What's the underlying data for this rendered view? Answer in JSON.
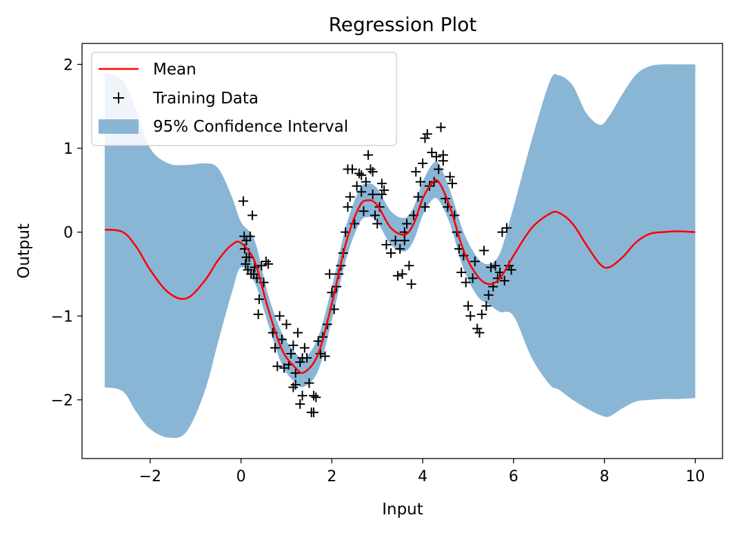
{
  "chart_data": {
    "type": "line",
    "title": "Regression Plot",
    "xlabel": "Input",
    "ylabel": "Output",
    "xlim": [
      -3.5,
      10.6
    ],
    "ylim": [
      -2.7,
      2.25
    ],
    "x_ticks": [
      -2,
      0,
      2,
      4,
      6,
      8,
      10
    ],
    "y_ticks": [
      -2,
      -1,
      0,
      1,
      2
    ],
    "x_tick_labels": [
      "−2",
      "0",
      "2",
      "4",
      "6",
      "8",
      "10"
    ],
    "y_tick_labels": [
      "−2",
      "−1",
      "0",
      "1",
      "2"
    ],
    "grid": false,
    "legend": {
      "position": "top-left",
      "entries": [
        "Mean",
        "Training Data",
        "95% Confidence Interval"
      ]
    },
    "colors": {
      "mean": "#ff0000",
      "band": "#8ab6d6",
      "points": "#000000"
    },
    "series": [
      {
        "name": "Mean",
        "x": [
          -3,
          -2.6,
          -2.3,
          -2,
          -1.6,
          -1.2,
          -0.8,
          -0.5,
          -0.2,
          0,
          0.3,
          0.6,
          0.9,
          1.2,
          1.4,
          1.7,
          2.0,
          2.3,
          2.6,
          2.8,
          3.0,
          3.3,
          3.6,
          3.8,
          4.0,
          4.2,
          4.35,
          4.6,
          4.9,
          5.2,
          5.45,
          5.7,
          6.0,
          6.4,
          6.8,
          7.0,
          7.3,
          7.6,
          7.9,
          8.1,
          8.4,
          8.7,
          9.0,
          9.3,
          9.6,
          10.0
        ],
        "y": [
          0.03,
          0.0,
          -0.18,
          -0.45,
          -0.72,
          -0.79,
          -0.58,
          -0.33,
          -0.15,
          -0.13,
          -0.35,
          -0.92,
          -1.4,
          -1.62,
          -1.67,
          -1.45,
          -0.85,
          -0.15,
          0.3,
          0.38,
          0.32,
          0.05,
          -0.03,
          0.1,
          0.4,
          0.58,
          0.6,
          0.3,
          -0.22,
          -0.52,
          -0.62,
          -0.55,
          -0.28,
          0.05,
          0.22,
          0.23,
          0.1,
          -0.15,
          -0.38,
          -0.42,
          -0.3,
          -0.12,
          -0.02,
          0.0,
          0.01,
          0.0
        ]
      },
      {
        "name": "95% Confidence Interval",
        "x": [
          -3,
          -2.6,
          -2.3,
          -2,
          -1.6,
          -1.2,
          -0.8,
          -0.5,
          -0.2,
          0,
          0.3,
          0.6,
          0.9,
          1.2,
          1.4,
          1.7,
          2.0,
          2.3,
          2.6,
          2.8,
          3.0,
          3.3,
          3.6,
          3.8,
          4.0,
          4.2,
          4.35,
          4.6,
          4.9,
          5.2,
          5.45,
          5.7,
          6.0,
          6.4,
          6.8,
          7.0,
          7.3,
          7.6,
          7.9,
          8.1,
          8.4,
          8.7,
          9.0,
          9.3,
          9.6,
          10.0
        ],
        "upper": [
          1.9,
          1.8,
          1.45,
          1.0,
          0.82,
          0.8,
          0.82,
          0.76,
          0.42,
          0.12,
          -0.1,
          -0.75,
          -1.2,
          -1.44,
          -1.5,
          -1.25,
          -0.65,
          0.05,
          0.5,
          0.58,
          0.52,
          0.25,
          0.17,
          0.3,
          0.6,
          0.8,
          0.82,
          0.5,
          0.0,
          -0.3,
          -0.38,
          -0.25,
          0.3,
          1.1,
          1.8,
          1.87,
          1.75,
          1.42,
          1.28,
          1.38,
          1.65,
          1.88,
          1.98,
          2.0,
          2.0,
          2.0
        ],
        "lower": [
          -1.85,
          -1.9,
          -2.15,
          -2.35,
          -2.45,
          -2.38,
          -1.9,
          -1.3,
          -0.72,
          -0.42,
          -0.6,
          -1.1,
          -1.58,
          -1.8,
          -1.84,
          -1.65,
          -1.05,
          -0.35,
          0.1,
          0.18,
          0.12,
          -0.15,
          -0.23,
          -0.1,
          0.2,
          0.38,
          0.38,
          0.1,
          -0.44,
          -0.76,
          -0.86,
          -0.95,
          -1.0,
          -1.5,
          -1.82,
          -1.88,
          -2.0,
          -2.1,
          -2.18,
          -2.2,
          -2.1,
          -2.02,
          -2.0,
          -1.99,
          -1.99,
          -1.98
        ]
      },
      {
        "name": "Training Data",
        "x": [
          0.05,
          0.07,
          0.08,
          0.1,
          0.12,
          0.15,
          0.18,
          0.22,
          0.25,
          0.28,
          0.3,
          0.35,
          0.38,
          0.4,
          0.45,
          0.5,
          0.55,
          0.6,
          0.7,
          0.75,
          0.8,
          0.85,
          0.9,
          0.95,
          1.0,
          1.05,
          1.1,
          1.15,
          1.2,
          1.2,
          1.25,
          1.3,
          1.3,
          1.35,
          1.4,
          1.45,
          1.5,
          1.55,
          1.6,
          1.65,
          1.7,
          1.75,
          1.8,
          1.85,
          1.9,
          1.95,
          2.0,
          2.05,
          2.1,
          2.15,
          2.2,
          2.25,
          2.3,
          2.35,
          2.4,
          2.45,
          2.5,
          2.55,
          2.6,
          2.65,
          2.7,
          2.75,
          2.8,
          2.85,
          2.9,
          2.95,
          3.0,
          3.05,
          3.1,
          3.15,
          3.2,
          3.3,
          3.4,
          3.45,
          3.5,
          3.55,
          3.6,
          3.65,
          3.7,
          3.75,
          3.8,
          3.85,
          3.9,
          3.95,
          4.0,
          4.05,
          4.1,
          4.15,
          4.2,
          4.25,
          4.3,
          4.35,
          4.4,
          4.45,
          4.5,
          4.55,
          4.6,
          4.65,
          4.7,
          4.75,
          4.8,
          4.85,
          4.9,
          4.95,
          5.0,
          5.05,
          5.1,
          5.15,
          5.2,
          5.25,
          5.3,
          5.35,
          5.4,
          5.45,
          5.5,
          5.55,
          5.6,
          5.65,
          5.7,
          5.75,
          5.8,
          5.85,
          5.9,
          5.95,
          2.35,
          2.65,
          2.9,
          3.1,
          3.6,
          4.05,
          4.45,
          1.15,
          1.35,
          0.12,
          0.2,
          1.6
        ],
        "y": [
          0.37,
          -0.05,
          -0.2,
          -0.38,
          -0.1,
          -0.45,
          -0.3,
          -0.5,
          0.2,
          -0.5,
          -0.42,
          -0.55,
          -0.98,
          -0.8,
          -0.4,
          -0.6,
          -0.35,
          -0.38,
          -1.2,
          -1.38,
          -1.6,
          -1.0,
          -1.28,
          -1.62,
          -1.1,
          -1.58,
          -1.45,
          -1.35,
          -1.68,
          -1.82,
          -1.2,
          -2.05,
          -1.55,
          -1.95,
          -1.38,
          -1.5,
          -1.8,
          -2.15,
          -1.95,
          -1.97,
          -1.3,
          -1.45,
          -1.25,
          -1.48,
          -1.1,
          -0.5,
          -0.72,
          -0.92,
          -0.65,
          -0.5,
          -0.4,
          -0.25,
          0.0,
          0.3,
          0.42,
          0.75,
          0.1,
          0.55,
          0.7,
          0.48,
          0.25,
          0.6,
          0.92,
          0.75,
          0.45,
          0.2,
          0.1,
          0.3,
          0.58,
          0.5,
          -0.15,
          -0.25,
          -0.1,
          -0.52,
          -0.2,
          -0.5,
          -0.1,
          0.1,
          -0.4,
          -0.62,
          0.2,
          0.72,
          0.42,
          0.6,
          0.82,
          0.3,
          1.17,
          0.55,
          0.95,
          0.6,
          0.9,
          0.75,
          1.25,
          0.85,
          0.4,
          0.3,
          0.66,
          0.58,
          0.2,
          0.0,
          -0.2,
          -0.48,
          -0.28,
          -0.6,
          -0.88,
          -1.0,
          -0.55,
          -0.35,
          -1.15,
          -1.2,
          -0.98,
          -0.22,
          -0.88,
          -0.75,
          -0.42,
          -0.65,
          -0.4,
          -0.55,
          -0.48,
          0.0,
          -0.58,
          0.05,
          -0.4,
          -0.45,
          0.75,
          0.68,
          0.72,
          0.45,
          0.0,
          1.12,
          0.92,
          -1.85,
          -1.5,
          -0.3,
          -0.05,
          -2.15
        ]
      }
    ]
  }
}
